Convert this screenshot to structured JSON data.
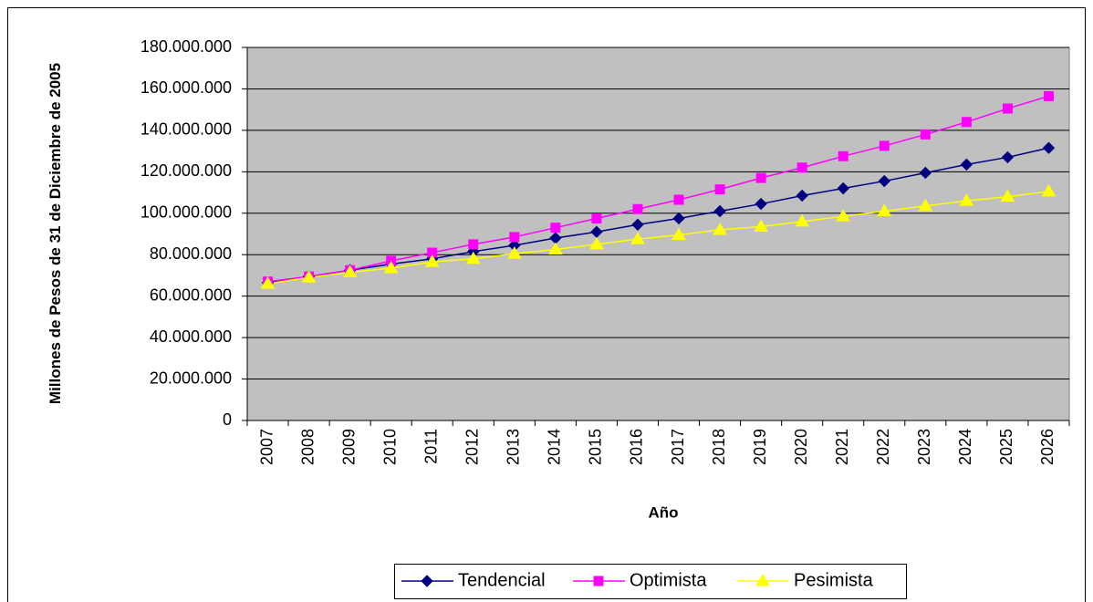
{
  "chart_data": {
    "type": "line",
    "y_label": "Millones de Pesos de 31 de Diciembre de 2005",
    "x_label": "Año",
    "categories": [
      "2007",
      "2008",
      "2009",
      "2010",
      "2011",
      "2012",
      "2013",
      "2014",
      "2015",
      "2016",
      "2017",
      "2018",
      "2019",
      "2020",
      "2021",
      "2022",
      "2023",
      "2024",
      "2025",
      "2026"
    ],
    "series": [
      {
        "name": "Tendencial",
        "color": "#000080",
        "marker": "diamond",
        "values": [
          66500000,
          69500000,
          72500000,
          75500000,
          78000000,
          81500000,
          84500000,
          88000000,
          91000000,
          94500000,
          97500000,
          101000000,
          104500000,
          108500000,
          112000000,
          115500000,
          119500000,
          123500000,
          127000000,
          131500000
        ]
      },
      {
        "name": "Optimista",
        "color": "#FF00FF",
        "marker": "square",
        "values": [
          67000000,
          69500000,
          72500000,
          77000000,
          81000000,
          85000000,
          88500000,
          93000000,
          97500000,
          102000000,
          106500000,
          111500000,
          117000000,
          122000000,
          127500000,
          132500000,
          138000000,
          144000000,
          150500000,
          156500000
        ]
      },
      {
        "name": "Pesimista",
        "color": "#FFFF00",
        "marker": "triangle",
        "values": [
          66000000,
          69000000,
          71500000,
          73500000,
          76500000,
          78000000,
          80500000,
          82500000,
          85000000,
          87500000,
          89500000,
          92000000,
          93500000,
          96000000,
          98500000,
          101000000,
          103500000,
          106000000,
          108000000,
          110500000
        ]
      }
    ],
    "ylim": [
      0,
      180000000
    ],
    "yticks": [
      0,
      {
        "value": 20000000,
        "label": "20.000.000"
      },
      {
        "value": 40000000,
        "label": "40.000.000"
      },
      {
        "value": 60000000,
        "label": "60.000.000"
      },
      {
        "value": 80000000,
        "label": "80.000.000"
      },
      {
        "value": 100000000,
        "label": "100.000.000"
      },
      {
        "value": 120000000,
        "label": "120.000.000"
      },
      {
        "value": 140000000,
        "label": "140.000.000"
      },
      {
        "value": 160000000,
        "label": "160.000.000"
      },
      {
        "value": 180000000,
        "label": "180.000.000"
      }
    ],
    "grid": true,
    "plot_background": "#C0C0C0",
    "legend": "bottom"
  }
}
